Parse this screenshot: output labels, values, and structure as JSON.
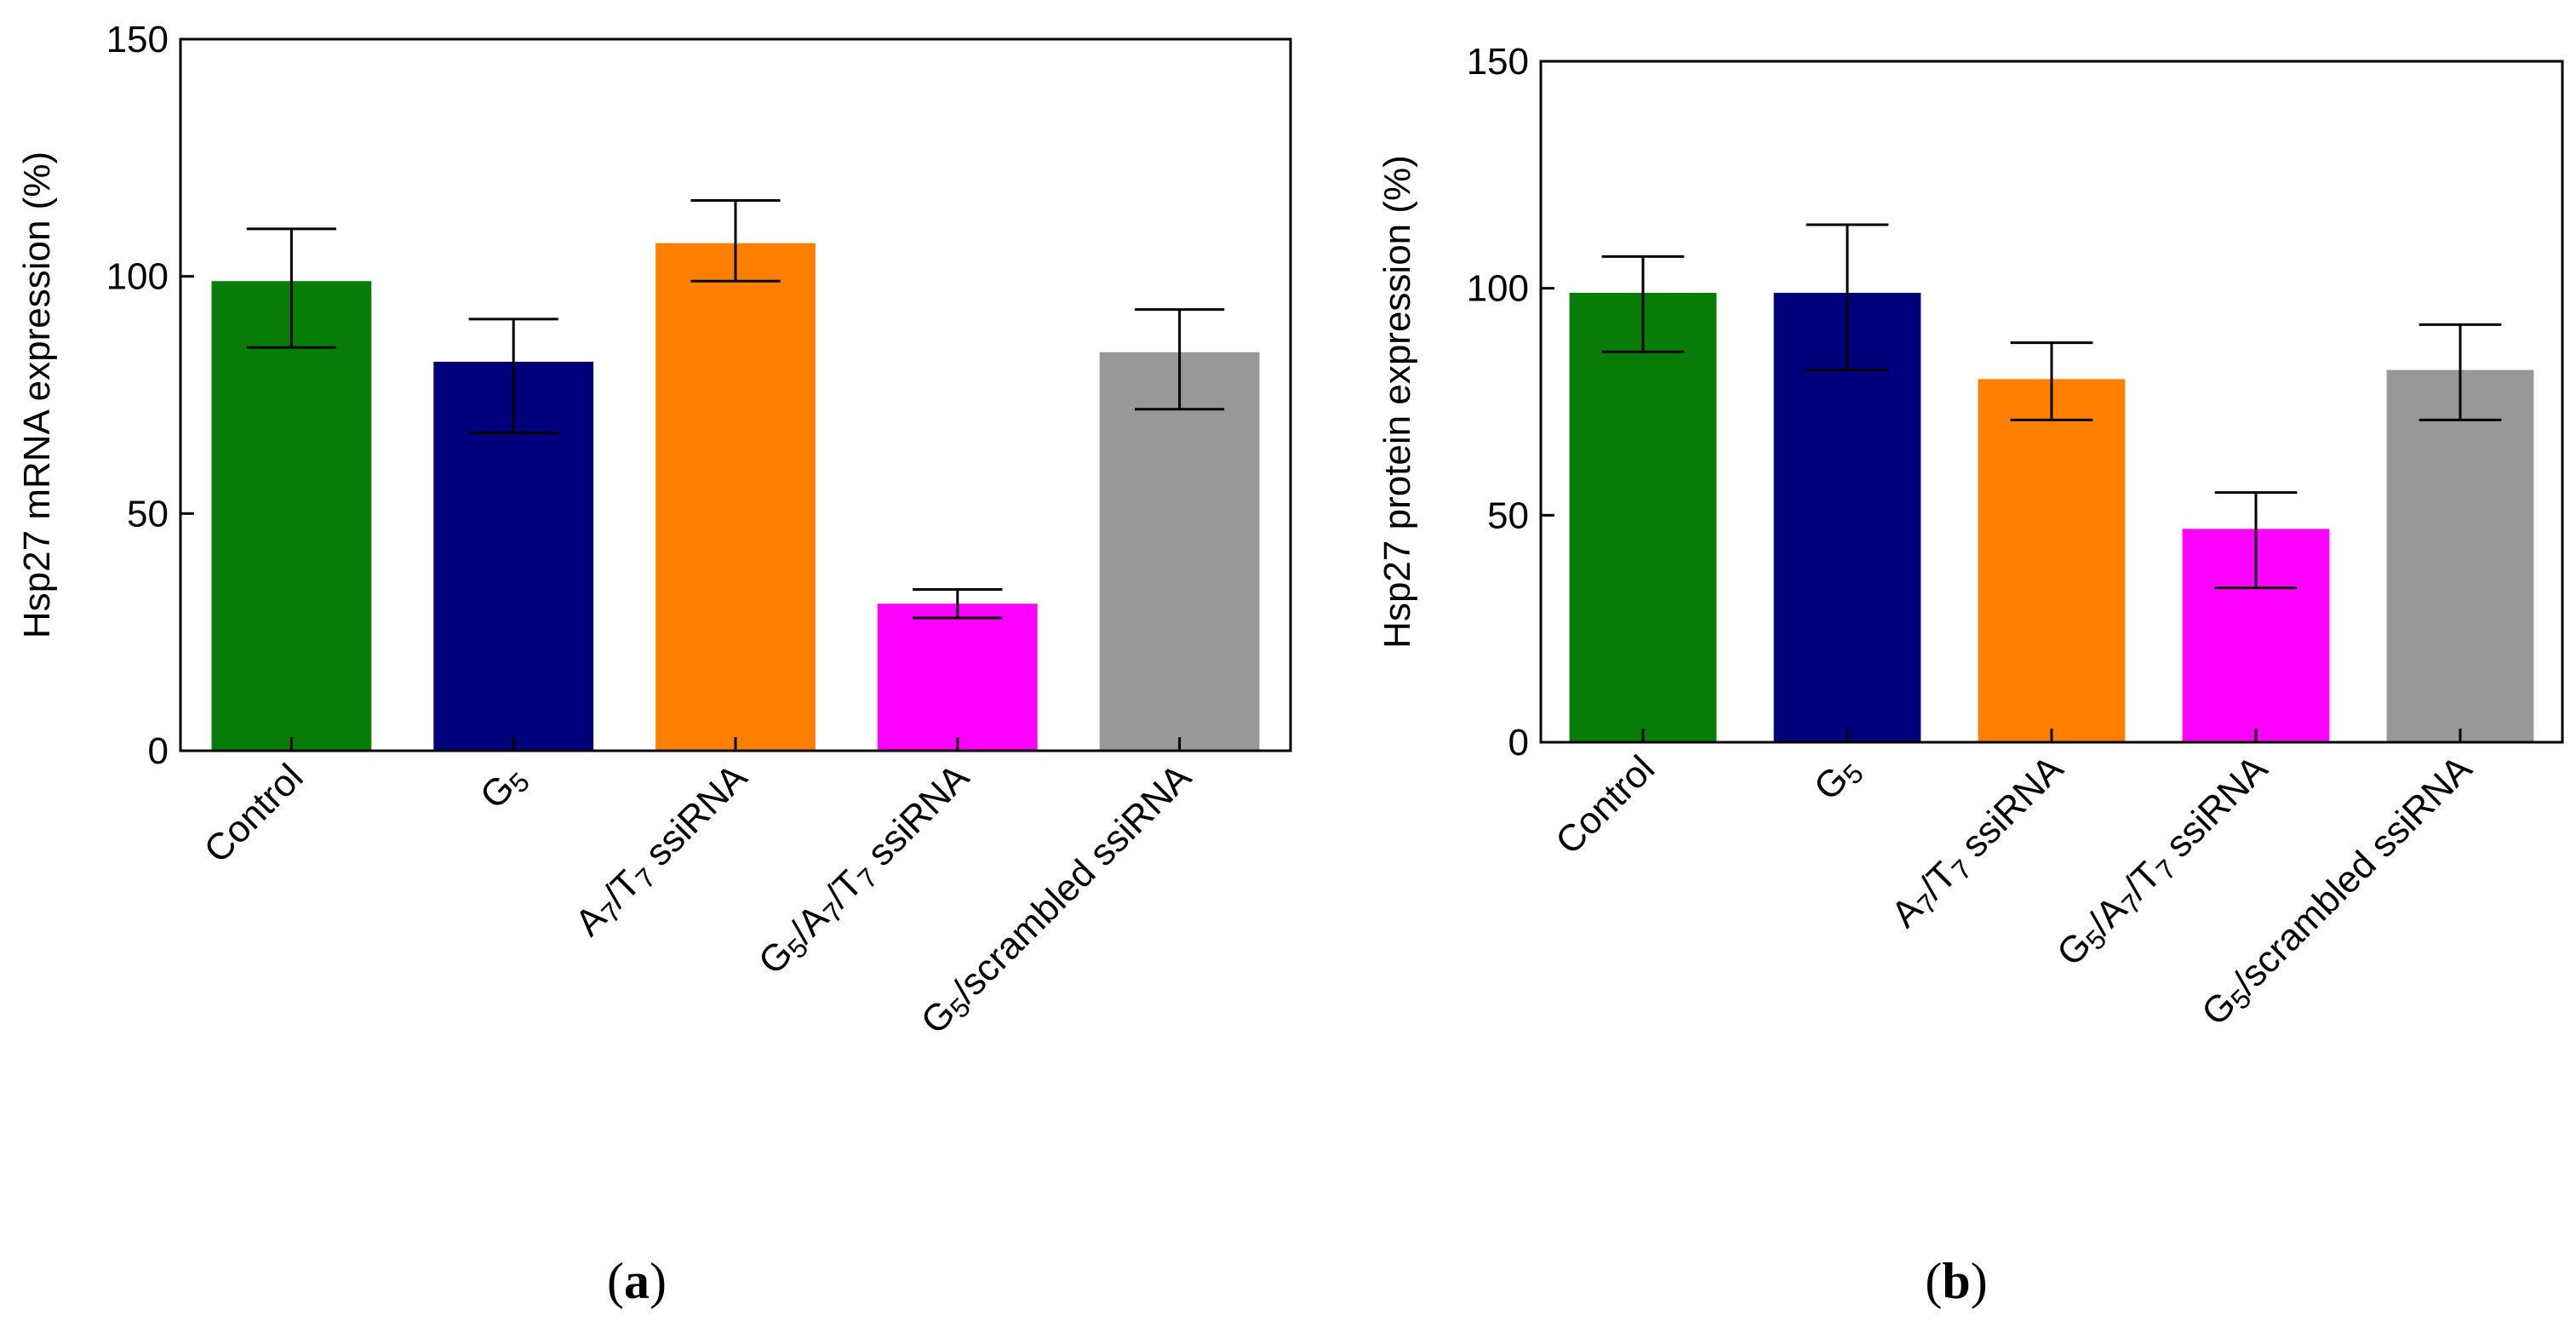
{
  "chart_data": [
    {
      "type": "bar",
      "panel_label": "(a)",
      "ylabel": "Hsp27 mRNA expression (%)",
      "ylim": [
        0,
        150
      ],
      "yticks": [
        0,
        50,
        100,
        150
      ],
      "categories": [
        {
          "parts": [
            {
              "t": "Control"
            }
          ]
        },
        {
          "parts": [
            {
              "t": "G"
            },
            {
              "t": "5",
              "sub": true
            }
          ]
        },
        {
          "parts": [
            {
              "t": "A"
            },
            {
              "t": "7",
              "sub": true
            },
            {
              "t": "/T"
            },
            {
              "t": "7",
              "sub": true
            },
            {
              "t": " ssiRNA"
            }
          ]
        },
        {
          "parts": [
            {
              "t": "G"
            },
            {
              "t": "5",
              "sub": true
            },
            {
              "t": "/A"
            },
            {
              "t": "7",
              "sub": true
            },
            {
              "t": "/T"
            },
            {
              "t": "7",
              "sub": true
            },
            {
              "t": " ssiRNA"
            }
          ]
        },
        {
          "parts": [
            {
              "t": "G"
            },
            {
              "t": "5",
              "sub": true
            },
            {
              "t": "/scrambled ssiRNA"
            }
          ]
        }
      ],
      "values": [
        99,
        82,
        107,
        31,
        84
      ],
      "err_low": [
        85,
        67,
        99,
        28,
        72
      ],
      "err_high": [
        110,
        91,
        116,
        34,
        93
      ],
      "colors": [
        "#077D07",
        "#00007C",
        "#FF8000",
        "#FF00FF",
        "#989898"
      ]
    },
    {
      "type": "bar",
      "panel_label": "(b)",
      "ylabel": "Hsp27 protein expression (%)",
      "ylim": [
        0,
        150
      ],
      "yticks": [
        0,
        50,
        100,
        150
      ],
      "categories": [
        {
          "parts": [
            {
              "t": "Control"
            }
          ]
        },
        {
          "parts": [
            {
              "t": "G"
            },
            {
              "t": "5",
              "sub": true
            }
          ]
        },
        {
          "parts": [
            {
              "t": "A"
            },
            {
              "t": "7",
              "sub": true
            },
            {
              "t": "/T"
            },
            {
              "t": "7",
              "sub": true
            },
            {
              "t": " ssiRNA"
            }
          ]
        },
        {
          "parts": [
            {
              "t": "G"
            },
            {
              "t": "5",
              "sub": true
            },
            {
              "t": "/A"
            },
            {
              "t": "7",
              "sub": true
            },
            {
              "t": "/T"
            },
            {
              "t": "7",
              "sub": true
            },
            {
              "t": " ssiRNA"
            }
          ]
        },
        {
          "parts": [
            {
              "t": "G"
            },
            {
              "t": "5",
              "sub": true
            },
            {
              "t": "/scrambled ssiRNA"
            }
          ]
        }
      ],
      "values": [
        99,
        99,
        80,
        47,
        82
      ],
      "err_low": [
        86,
        82,
        71,
        34,
        71
      ],
      "err_high": [
        107,
        114,
        88,
        55,
        92
      ],
      "colors": [
        "#077D07",
        "#00007C",
        "#FF8000",
        "#FF00FF",
        "#989898"
      ]
    }
  ]
}
